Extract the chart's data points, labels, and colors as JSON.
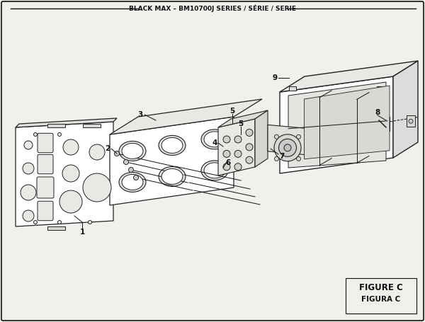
{
  "title": "BLACK MAX – BM10700J SERIES / SÉRIE / SERIE",
  "figure_label": "FIGURE C",
  "figure_label2": "FIGURA C",
  "bg_color": "#f0f0ec",
  "border_color": "#111111",
  "line_color": "#222222",
  "fill_light": "#ffffff",
  "fill_mid": "#e8e8e4",
  "fill_dark": "#d0d0cc"
}
